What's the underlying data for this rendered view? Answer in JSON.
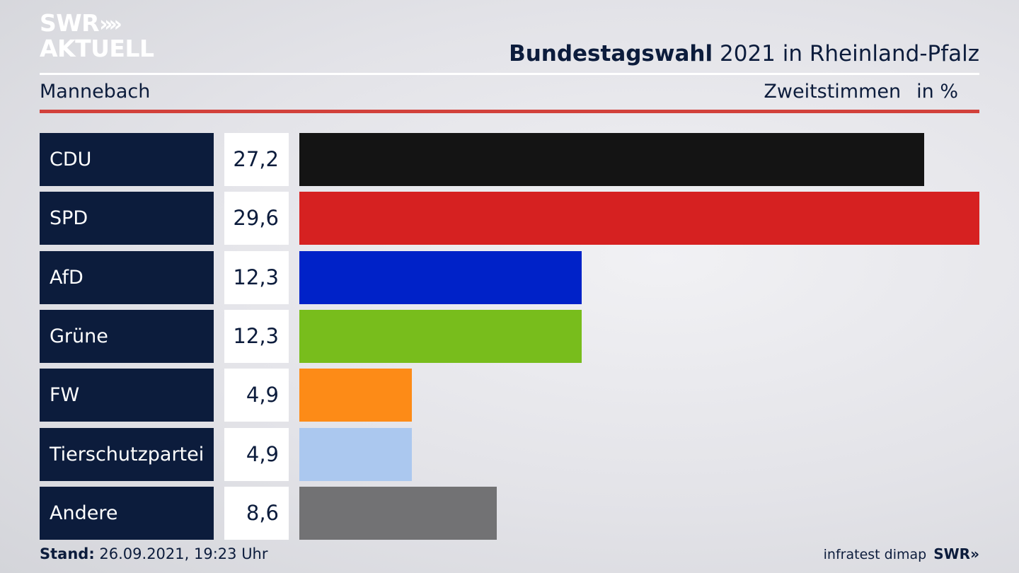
{
  "header": {
    "logo_line1": "SWR",
    "logo_line2": "AKTUELL",
    "logo_chevrons": "»",
    "title_bold": "Bundestagswahl",
    "title_rest": "2021 in Rheinland-Pfalz",
    "location": "Mannebach",
    "metric": "Zweitstimmen",
    "unit": "in %"
  },
  "footer": {
    "stand_label": "Stand:",
    "stand_value": "26.09.2021, 19:23 Uhr",
    "source": "infratest dimap",
    "brand": "SWR»"
  },
  "chart_data": {
    "type": "bar",
    "orientation": "horizontal",
    "categories": [
      "CDU",
      "SPD",
      "AfD",
      "Grüne",
      "FW",
      "Tierschutzpartei",
      "Andere"
    ],
    "values": [
      27.2,
      29.6,
      12.3,
      12.3,
      4.9,
      4.9,
      8.6
    ],
    "value_labels": [
      "27,2",
      "29,6",
      "12,3",
      "12,3",
      "4,9",
      "4,9",
      "8,6"
    ],
    "colors": [
      "#141414",
      "#d62121",
      "#0022c8",
      "#78bd1c",
      "#fd8b17",
      "#abc8ef",
      "#727274"
    ],
    "xlim": [
      0,
      29.6
    ],
    "title": "Bundestagswahl 2021 in Rheinland-Pfalz",
    "xlabel": "",
    "ylabel": ""
  }
}
